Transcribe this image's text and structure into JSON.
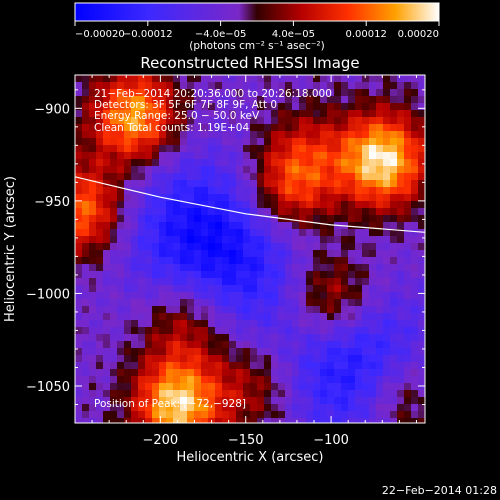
{
  "chart_data": {
    "type": "heatmap",
    "title": "Reconstructed RHESSI Image",
    "xlabel": "Heliocentric X (arcsec)",
    "ylabel": "Heliocentric Y (arcsec)",
    "xlim": [
      -250,
      -45
    ],
    "ylim": [
      -1070,
      -882
    ],
    "x_ticks": [
      -200,
      -150,
      -100
    ],
    "x_tick_labels": [
      "−200",
      "−150",
      "−100"
    ],
    "y_ticks": [
      -900,
      -950,
      -1000,
      -1050
    ],
    "y_tick_labels": [
      "−900",
      "−950",
      "−1000",
      "−1050"
    ],
    "colorbar": {
      "range": [
        -0.0002,
        0.0002
      ],
      "ticks": [
        -0.0002,
        -0.00012,
        -4e-05,
        4e-05,
        0.00012,
        0.0002
      ],
      "tick_labels": [
        "−0.00020",
        "−0.00012",
        "−4.0e−05",
        "4.0e−05",
        "0.00012",
        "0.00020"
      ],
      "unit_label": "(photons cm⁻² s⁻¹ asec⁻²)"
    },
    "annotations": [
      "21−Feb−2014 20:20:36.000  to 20:26:18.000",
      "Detectors: 3F 5F 6F 7F 8F 9F, Att 0",
      "Energy Range: 25.0 − 50.0 keV",
      "Clean     Total counts: 1.19E+04",
      "Position of Peak: [−72,−928]"
    ],
    "limb_curve": {
      "x": [
        -250,
        -200,
        -150,
        -100,
        -45
      ],
      "y": [
        -937,
        -948,
        -957,
        -963,
        -967
      ]
    },
    "sources": [
      {
        "x": -70,
        "y": -928,
        "amplitude": 0.00022
      },
      {
        "x": -215,
        "y": -905,
        "amplitude": 0.00019
      },
      {
        "x": -190,
        "y": -1060,
        "amplitude": 0.00021
      },
      {
        "x": -245,
        "y": -955,
        "amplitude": 0.00016
      },
      {
        "x": -100,
        "y": -1003,
        "amplitude": 0.00013
      },
      {
        "x": -125,
        "y": -945,
        "amplitude": 0.00012
      },
      {
        "x": -185,
        "y": -1015,
        "amplitude": 0.0001
      },
      {
        "x": -60,
        "y": -1058,
        "amplitude": 0.0001
      },
      {
        "x": -145,
        "y": -1050,
        "amplitude": 8e-05
      },
      {
        "x": -115,
        "y": -925,
        "amplitude": 8e-05
      }
    ],
    "negative_regions": [
      {
        "x": -185,
        "y": -965,
        "amplitude": -0.00011
      },
      {
        "x": -85,
        "y": -1040,
        "amplitude": -0.00014
      },
      {
        "x": -150,
        "y": -985,
        "amplitude": -9e-05
      }
    ]
  },
  "footer": {
    "timestamp": "22−Feb−2014 01:28"
  }
}
